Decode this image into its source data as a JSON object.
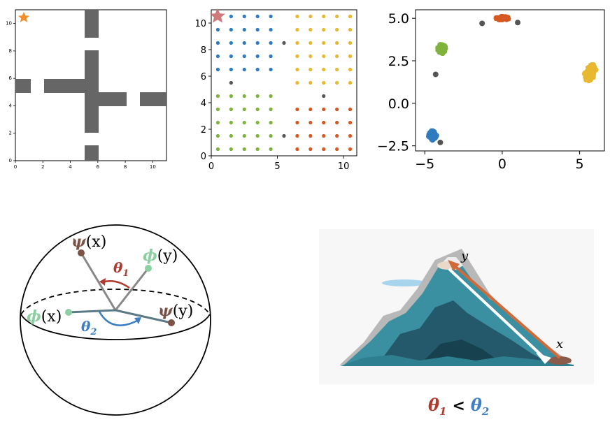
{
  "panel_maze": {
    "x_ticks": [
      "0",
      "2",
      "4",
      "6",
      "8",
      "10"
    ],
    "y_ticks": [
      "0",
      "2",
      "4",
      "6",
      "8",
      "10"
    ],
    "start_marker_color": "#f28e2b",
    "wall_color": "#666666"
  },
  "panel_grid": {
    "x_ticks": [
      "0",
      "5",
      "10"
    ],
    "y_ticks": [
      "0",
      "2",
      "4",
      "6",
      "8",
      "10"
    ],
    "start_marker_color": "#c96b6b",
    "colors": {
      "blue": "#2f7bbf",
      "yellow": "#e8b830",
      "green": "#7fb33c",
      "red": "#d45a22",
      "gray": "#555555"
    }
  },
  "chart_data": {
    "type": "scatter",
    "x_ticks": [
      "−5",
      "0",
      "5"
    ],
    "y_ticks": [
      "5.0",
      "2.5",
      "0.0",
      "−2.5"
    ],
    "xlim": [
      -5.6,
      6.6
    ],
    "ylim": [
      -2.8,
      5.5
    ],
    "series": [
      {
        "color": "#d45a22",
        "center": [
          0.0,
          5.0
        ]
      },
      {
        "color": "#7fb33c",
        "center": [
          -3.9,
          3.2
        ]
      },
      {
        "color": "#e8b830",
        "center": [
          5.7,
          1.8
        ]
      },
      {
        "color": "#2f7bbf",
        "center": [
          -4.5,
          -1.9
        ]
      }
    ],
    "gray_points": [
      [
        -1.3,
        4.7
      ],
      [
        1.0,
        4.75
      ],
      [
        -4.3,
        1.7
      ],
      [
        -4.0,
        -2.3
      ]
    ]
  },
  "sphere": {
    "labels": {
      "psi": "ψ",
      "phi": "ϕ",
      "theta": "θ",
      "x": "(x)",
      "y": "(y)",
      "sub1": "1",
      "sub2": "2"
    },
    "colors": {
      "psi": "#7a5246",
      "phi": "#8ccfa3",
      "theta1": "#b03a2e",
      "theta2": "#3d7ec4"
    }
  },
  "mountain": {
    "label_y": "y",
    "label_x": "x",
    "colors": {
      "orange_arrow": "#d06a3a",
      "white_arrow": "#eeeeee",
      "mountain": "#3a8fa0"
    }
  },
  "inequality": {
    "theta": "θ",
    "sub1": "1",
    "lt": "<",
    "sub2": "2",
    "color1": "#b03a2e",
    "color2": "#3d7ec4"
  }
}
